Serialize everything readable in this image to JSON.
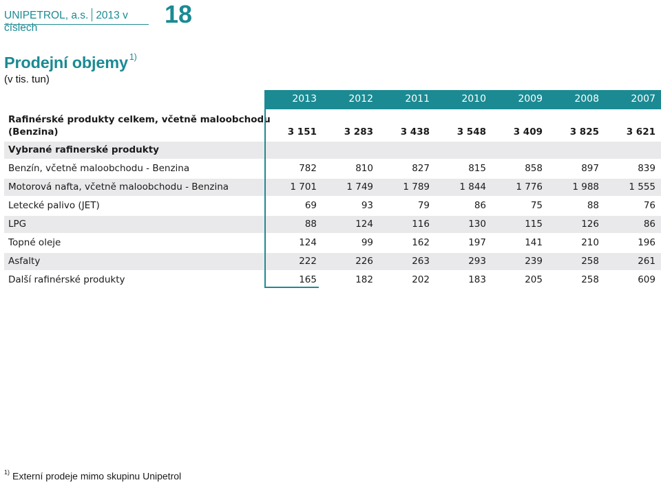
{
  "header": {
    "company": "UNIPETROL, a.s.",
    "subtitle": "2013 v číslech",
    "page_number": "18"
  },
  "section": {
    "title": "Prodejní objemy",
    "title_note": "1)",
    "unit": "(v tis. tun)"
  },
  "table": {
    "years": [
      "2013",
      "2012",
      "2011",
      "2010",
      "2009",
      "2008",
      "2007"
    ],
    "total_row": {
      "label_line1": "Rafinérské produkty celkem, včetně maloobchodu",
      "label_line2": "(Benzina)",
      "values": [
        "3 151",
        "3 283",
        "3 438",
        "3 548",
        "3 409",
        "3 825",
        "3 621"
      ]
    },
    "group_heading": "Vybrané rafinerské produkty",
    "rows": [
      {
        "label": "Benzín, včetně maloobchodu - Benzina",
        "values": [
          "782",
          "810",
          "827",
          "815",
          "858",
          "897",
          "839"
        ]
      },
      {
        "label": "Motorová nafta, včetně maloobchodu - Benzina",
        "values": [
          "1 701",
          "1 749",
          "1 789",
          "1 844",
          "1 776",
          "1 988",
          "1 555"
        ]
      },
      {
        "label": "Letecké palivo (JET)",
        "values": [
          "69",
          "93",
          "79",
          "86",
          "75",
          "88",
          "76"
        ]
      },
      {
        "label": "LPG",
        "values": [
          "88",
          "124",
          "116",
          "130",
          "115",
          "126",
          "86"
        ]
      },
      {
        "label": "Topné oleje",
        "values": [
          "124",
          "99",
          "162",
          "197",
          "141",
          "210",
          "196"
        ]
      },
      {
        "label": "Asfalty",
        "values": [
          "222",
          "226",
          "263",
          "293",
          "239",
          "258",
          "261"
        ]
      },
      {
        "label": "Další rafinérské produkty",
        "values": [
          "165",
          "182",
          "202",
          "183",
          "205",
          "258",
          "609"
        ]
      }
    ]
  },
  "footnote": {
    "marker": "1)",
    "text": "Externí prodeje mimo skupinu Unipetrol"
  },
  "colors": {
    "accent": "#1b8a93",
    "row_shade": "#e9e9eb"
  }
}
